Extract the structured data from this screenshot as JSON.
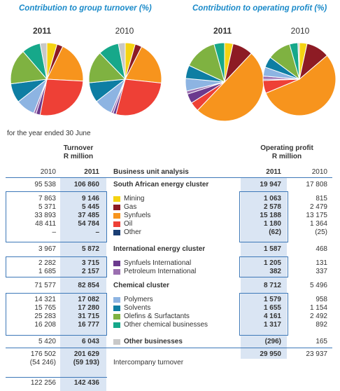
{
  "headings": {
    "left": "Contribution to group turnover (%)",
    "right": "Contribution to operating profit (%)"
  },
  "years": {
    "current": "2011",
    "prior": "2010"
  },
  "colors": {
    "mining": "#f5d312",
    "gas": "#8d1b24",
    "synfuels": "#f7941d",
    "oil": "#ee4036",
    "other": "#1a3d73",
    "synfuels_international": "#6b3a8e",
    "petroleum_international": "#9b6fb0",
    "polymers": "#8db4e2",
    "solvents": "#0e7ea3",
    "olefins": "#7fb241",
    "other_chemical": "#16a88a",
    "other_businesses": "#c8c8c8",
    "highlight": "#dae5f3",
    "rule": "#3d78b8"
  },
  "chart_data": [
    {
      "type": "pie",
      "title": "Contribution to group turnover (%)",
      "label": "2011",
      "slices": [
        {
          "name": "Mining",
          "value": 9146,
          "color": "#f5d312"
        },
        {
          "name": "Gas",
          "value": 5445,
          "color": "#8d1b24"
        },
        {
          "name": "Synfuels",
          "value": 37485,
          "color": "#f7941d"
        },
        {
          "name": "Oil",
          "value": 54784,
          "color": "#ee4036"
        },
        {
          "name": "Synfuels International",
          "value": 3715,
          "color": "#6b3a8e"
        },
        {
          "name": "Petroleum International",
          "value": 2157,
          "color": "#9b6fb0"
        },
        {
          "name": "Polymers",
          "value": 17082,
          "color": "#8db4e2"
        },
        {
          "name": "Solvents",
          "value": 17280,
          "color": "#0e7ea3"
        },
        {
          "name": "Olefins & Surfactants",
          "value": 31715,
          "color": "#7fb241"
        },
        {
          "name": "Other chemical businesses",
          "value": 16777,
          "color": "#16a88a"
        },
        {
          "name": "Other businesses",
          "value": 6043,
          "color": "#c8c8c8"
        }
      ]
    },
    {
      "type": "pie",
      "title": "Contribution to group turnover (%)",
      "label": "2010",
      "slices": [
        {
          "name": "Mining",
          "value": 7863,
          "color": "#f5d312"
        },
        {
          "name": "Gas",
          "value": 5371,
          "color": "#8d1b24"
        },
        {
          "name": "Synfuels",
          "value": 33893,
          "color": "#f7941d"
        },
        {
          "name": "Oil",
          "value": 48411,
          "color": "#ee4036"
        },
        {
          "name": "Synfuels International",
          "value": 2282,
          "color": "#6b3a8e"
        },
        {
          "name": "Petroleum International",
          "value": 1685,
          "color": "#9b6fb0"
        },
        {
          "name": "Polymers",
          "value": 14321,
          "color": "#8db4e2"
        },
        {
          "name": "Solvents",
          "value": 15765,
          "color": "#0e7ea3"
        },
        {
          "name": "Olefins & Surfactants",
          "value": 25283,
          "color": "#7fb241"
        },
        {
          "name": "Other chemical businesses",
          "value": 16208,
          "color": "#16a88a"
        },
        {
          "name": "Other businesses",
          "value": 5420,
          "color": "#c8c8c8"
        }
      ]
    },
    {
      "type": "pie",
      "title": "Contribution to operating profit (%)",
      "label": "2011",
      "slices": [
        {
          "name": "Mining",
          "value": 1063,
          "color": "#f5d312"
        },
        {
          "name": "Gas",
          "value": 2578,
          "color": "#8d1b24"
        },
        {
          "name": "Synfuels",
          "value": 15188,
          "color": "#f7941d"
        },
        {
          "name": "Oil",
          "value": 1180,
          "color": "#ee4036"
        },
        {
          "name": "Synfuels International",
          "value": 1205,
          "color": "#6b3a8e"
        },
        {
          "name": "Petroleum International",
          "value": 382,
          "color": "#9b6fb0"
        },
        {
          "name": "Polymers",
          "value": 1579,
          "color": "#8db4e2"
        },
        {
          "name": "Solvents",
          "value": 1655,
          "color": "#0e7ea3"
        },
        {
          "name": "Olefins & Surfactants",
          "value": 4161,
          "color": "#7fb241"
        },
        {
          "name": "Other chemical businesses",
          "value": 1317,
          "color": "#16a88a"
        }
      ]
    },
    {
      "type": "pie",
      "title": "Contribution to operating profit (%)",
      "label": "2010",
      "slices": [
        {
          "name": "Mining",
          "value": 815,
          "color": "#f5d312"
        },
        {
          "name": "Gas",
          "value": 2479,
          "color": "#8d1b24"
        },
        {
          "name": "Synfuels",
          "value": 13175,
          "color": "#f7941d"
        },
        {
          "name": "Oil",
          "value": 1364,
          "color": "#ee4036"
        },
        {
          "name": "Synfuels International",
          "value": 131,
          "color": "#6b3a8e"
        },
        {
          "name": "Petroleum International",
          "value": 337,
          "color": "#9b6fb0"
        },
        {
          "name": "Polymers",
          "value": 958,
          "color": "#8db4e2"
        },
        {
          "name": "Solvents",
          "value": 1154,
          "color": "#0e7ea3"
        },
        {
          "name": "Olefins & Surfactants",
          "value": 2492,
          "color": "#7fb241"
        },
        {
          "name": "Other chemical businesses",
          "value": 892,
          "color": "#16a88a"
        },
        {
          "name": "Other businesses",
          "value": 165,
          "color": "#c8c8c8"
        }
      ]
    }
  ],
  "table": {
    "caption": "for the year ended 30 June",
    "turnover_header": [
      "Turnover",
      "R million"
    ],
    "profit_header": [
      "Operating profit",
      "R million"
    ],
    "analysis_header": "Business unit analysis",
    "col_2010": "2010",
    "col_2011": "2011",
    "rows": [
      {
        "key": "sa_energy",
        "t2010": "95 538",
        "t2011": "106 860",
        "label": "South African energy cluster",
        "p2011": "19 947",
        "p2010": "17 808",
        "bold": true
      },
      {
        "key": "mining",
        "t2010": "7 863",
        "t2011": "9 146",
        "label": "Mining",
        "p2011": "1 063",
        "p2010": "815",
        "swatch": "#f5d312"
      },
      {
        "key": "gas",
        "t2010": "5 371",
        "t2011": "5 445",
        "label": "Gas",
        "p2011": "2 578",
        "p2010": "2 479",
        "swatch": "#8d1b24"
      },
      {
        "key": "synfuels",
        "t2010": "33 893",
        "t2011": "37 485",
        "label": "Synfuels",
        "p2011": "15 188",
        "p2010": "13 175",
        "swatch": "#f7941d"
      },
      {
        "key": "oil",
        "t2010": "48 411",
        "t2011": "54 784",
        "label": "Oil",
        "p2011": "1 180",
        "p2010": "1 364",
        "swatch": "#ee4036"
      },
      {
        "key": "other",
        "t2010": "–",
        "t2011": "–",
        "label": "Other",
        "p2011": "(62)",
        "p2010": "(25)",
        "swatch": "#1a3d73"
      },
      {
        "key": "intl_energy",
        "t2010": "3 967",
        "t2011": "5 872",
        "label": "International energy cluster",
        "p2011": "1 587",
        "p2010": "468",
        "bold": true
      },
      {
        "key": "synfuels_intl",
        "t2010": "2 282",
        "t2011": "3 715",
        "label": "Synfuels International",
        "p2011": "1 205",
        "p2010": "131",
        "swatch": "#6b3a8e"
      },
      {
        "key": "petroleum_intl",
        "t2010": "1 685",
        "t2011": "2 157",
        "label": "Petroleum International",
        "p2011": "382",
        "p2010": "337",
        "swatch": "#9b6fb0"
      },
      {
        "key": "chemical",
        "t2010": "71 577",
        "t2011": "82 854",
        "label": "Chemical cluster",
        "p2011": "8 712",
        "p2010": "5 496",
        "bold": true
      },
      {
        "key": "polymers",
        "t2010": "14 321",
        "t2011": "17 082",
        "label": "Polymers",
        "p2011": "1 579",
        "p2010": "958",
        "swatch": "#8db4e2"
      },
      {
        "key": "solvents",
        "t2010": "15 765",
        "t2011": "17 280",
        "label": "Solvents",
        "p2011": "1 655",
        "p2010": "1 154",
        "swatch": "#0e7ea3"
      },
      {
        "key": "olefins",
        "t2010": "25 283",
        "t2011": "31 715",
        "label": "Olefins & Surfactants",
        "p2011": "4 161",
        "p2010": "2 492",
        "swatch": "#7fb241"
      },
      {
        "key": "other_chem",
        "t2010": "16 208",
        "t2011": "16 777",
        "label": "Other chemical businesses",
        "p2011": "1 317",
        "p2010": "892",
        "swatch": "#16a88a"
      },
      {
        "key": "other_bus",
        "t2010": "5 420",
        "t2011": "6 043",
        "label": "Other businesses",
        "p2011": "(296)",
        "p2010": "165",
        "bold": true,
        "swatch": "#c8c8c8"
      },
      {
        "key": "total",
        "t2010": "176 502",
        "t2011": "201 629",
        "label": "",
        "p2011": "29 950",
        "p2010": "23 937"
      },
      {
        "key": "interco",
        "t2010": "(54 246)",
        "t2011": "(59 193)",
        "label": "Intercompany turnover",
        "p2011": "",
        "p2010": ""
      },
      {
        "key": "net",
        "t2010": "122 256",
        "t2011": "142 436",
        "label": "",
        "p2011": "",
        "p2010": ""
      }
    ]
  }
}
